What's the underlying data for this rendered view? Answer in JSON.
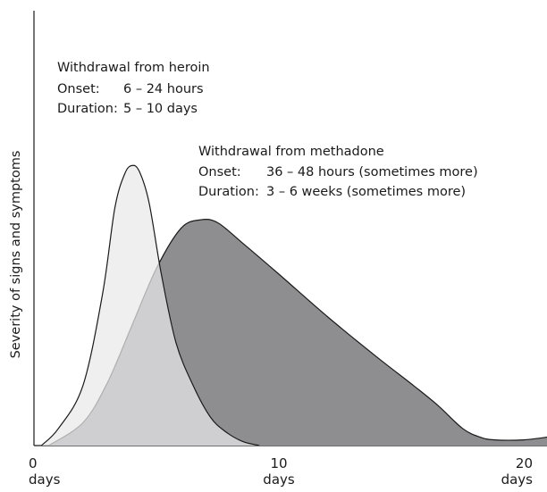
{
  "chart_data": {
    "type": "area",
    "title": "",
    "xlabel": "",
    "ylabel": "Severity of signs and symptoms",
    "xlim": [
      0,
      21
    ],
    "ylim": [
      0,
      1
    ],
    "x_ticks": [
      {
        "value": 0,
        "label": "0",
        "unit": "days"
      },
      {
        "value": 10,
        "label": "10",
        "unit": "days"
      },
      {
        "value": 20,
        "label": "20",
        "unit": "days"
      }
    ],
    "grid": false,
    "series": [
      {
        "name": "Withdrawal from methadone",
        "color": "#8e8e90",
        "x": [
          0.6,
          2.0,
          3.0,
          4.0,
          5.0,
          6.0,
          6.8,
          7.5,
          8.5,
          10.0,
          12.0,
          14.0,
          15.5,
          16.5,
          17.5,
          18.2,
          18.8,
          20.0,
          21.0
        ],
        "y": [
          0.0,
          0.08,
          0.22,
          0.42,
          0.62,
          0.76,
          0.79,
          0.78,
          0.71,
          0.6,
          0.45,
          0.31,
          0.21,
          0.14,
          0.06,
          0.03,
          0.02,
          0.02,
          0.03
        ]
      },
      {
        "name": "Withdrawal from heroin",
        "color": "#e9e9ea",
        "x": [
          0.3,
          1.0,
          2.0,
          2.8,
          3.3,
          3.7,
          4.0,
          4.3,
          4.7,
          5.2,
          5.8,
          6.5,
          7.2,
          7.8,
          8.5,
          9.2
        ],
        "y": [
          0.0,
          0.06,
          0.21,
          0.53,
          0.83,
          0.95,
          0.98,
          0.96,
          0.85,
          0.6,
          0.36,
          0.21,
          0.1,
          0.05,
          0.015,
          0.0
        ]
      }
    ],
    "annotations": [
      {
        "series": "Withdrawal from heroin",
        "title": "Withdrawal from heroin",
        "onset_label": "Onset:",
        "onset": "6 – 24 hours",
        "duration_label": "Duration:",
        "duration": "5 – 10 days"
      },
      {
        "series": "Withdrawal from methadone",
        "title": "Withdrawal from methadone",
        "onset_label": "Onset:",
        "onset": "36 – 48 hours (sometimes more)",
        "duration_label": "Duration:",
        "duration": "3 – 6 weeks (sometimes more)"
      }
    ]
  }
}
